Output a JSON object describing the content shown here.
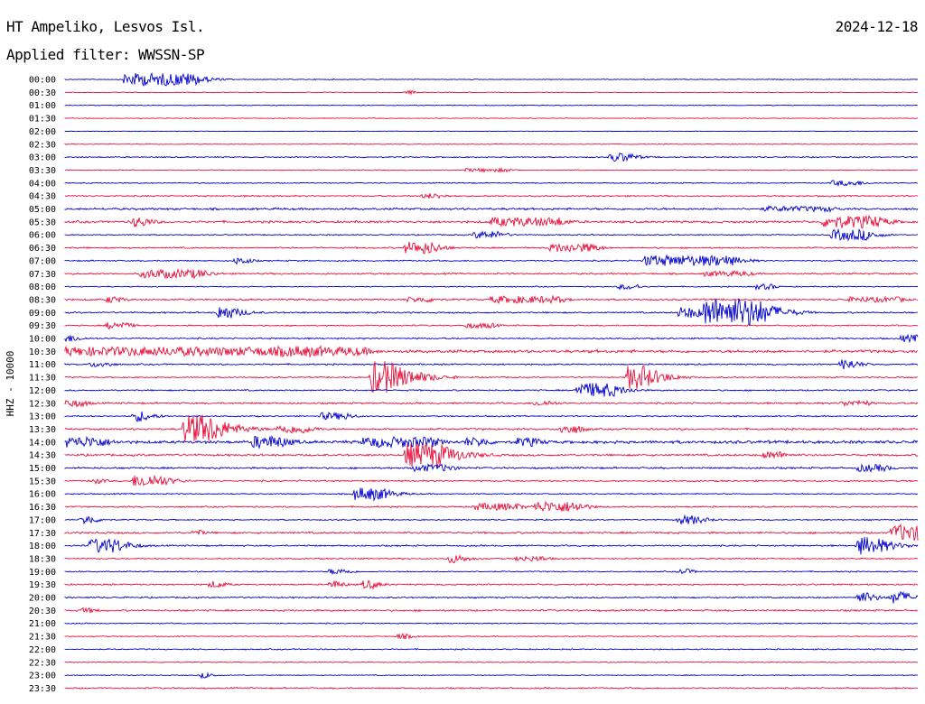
{
  "header": {
    "station": "HT Ampeliko, Lesvos Isl.",
    "date": "2024-12-18",
    "filter": "Applied filter: WWSSN-SP"
  },
  "chart_data": {
    "type": "line",
    "title": "HT Ampeliko, Lesvos Isl.",
    "ylabel": "HHZ - 10000",
    "colors": {
      "odd": "#0000cc",
      "even": "#e8103c"
    },
    "rows": [
      {
        "label": "00:00",
        "color": "#0000cc",
        "noise": 0.6,
        "events": [
          [
            0.07,
            7,
            5,
            0.08
          ]
        ]
      },
      {
        "label": "00:30",
        "color": "#e8103c",
        "noise": 0.5,
        "events": [
          [
            0.4,
            2,
            2,
            0.01
          ]
        ]
      },
      {
        "label": "01:00",
        "color": "#0000cc",
        "noise": 0.5,
        "events": []
      },
      {
        "label": "01:30",
        "color": "#e8103c",
        "noise": 0.5,
        "events": []
      },
      {
        "label": "02:00",
        "color": "#0000cc",
        "noise": 0.4,
        "events": []
      },
      {
        "label": "02:30",
        "color": "#e8103c",
        "noise": 0.5,
        "events": []
      },
      {
        "label": "03:00",
        "color": "#0000cc",
        "noise": 0.8,
        "events": [
          [
            0.64,
            5,
            4,
            0.02
          ]
        ]
      },
      {
        "label": "03:30",
        "color": "#e8103c",
        "noise": 0.6,
        "events": [
          [
            0.47,
            2,
            2,
            0.05
          ]
        ]
      },
      {
        "label": "04:00",
        "color": "#0000cc",
        "noise": 0.7,
        "events": [
          [
            0.9,
            3,
            3,
            0.03
          ]
        ]
      },
      {
        "label": "04:30",
        "color": "#e8103c",
        "noise": 1.0,
        "events": [
          [
            0.42,
            3,
            3,
            0.02
          ]
        ]
      },
      {
        "label": "05:00",
        "color": "#0000cc",
        "noise": 1.4,
        "events": [
          [
            0.82,
            3,
            3,
            0.08
          ]
        ]
      },
      {
        "label": "05:30",
        "color": "#e8103c",
        "noise": 1.5,
        "events": [
          [
            0.08,
            6,
            4,
            0.01
          ],
          [
            0.5,
            5,
            4,
            0.08
          ],
          [
            0.89,
            7,
            5,
            0.06
          ]
        ]
      },
      {
        "label": "06:00",
        "color": "#0000cc",
        "noise": 0.8,
        "events": [
          [
            0.48,
            4,
            3,
            0.03
          ],
          [
            0.9,
            6,
            4,
            0.04
          ]
        ]
      },
      {
        "label": "06:30",
        "color": "#e8103c",
        "noise": 1.0,
        "events": [
          [
            0.4,
            7,
            4,
            0.03
          ],
          [
            0.57,
            5,
            3,
            0.05
          ]
        ]
      },
      {
        "label": "07:00",
        "color": "#0000cc",
        "noise": 0.9,
        "events": [
          [
            0.2,
            4,
            3,
            0.01
          ],
          [
            0.68,
            6,
            5,
            0.1
          ]
        ]
      },
      {
        "label": "07:30",
        "color": "#e8103c",
        "noise": 1.1,
        "events": [
          [
            0.09,
            5,
            4,
            0.07
          ],
          [
            0.75,
            3,
            3,
            0.05
          ]
        ]
      },
      {
        "label": "08:00",
        "color": "#0000cc",
        "noise": 0.7,
        "events": [
          [
            0.65,
            3,
            2,
            0.02
          ],
          [
            0.81,
            3,
            2,
            0.02
          ]
        ]
      },
      {
        "label": "08:30",
        "color": "#e8103c",
        "noise": 1.2,
        "events": [
          [
            0.05,
            4,
            3,
            0.01
          ],
          [
            0.4,
            3,
            3,
            0.03
          ],
          [
            0.5,
            4,
            3,
            0.08
          ],
          [
            0.92,
            3,
            3,
            0.06
          ]
        ]
      },
      {
        "label": "09:00",
        "color": "#0000cc",
        "noise": 1.0,
        "events": [
          [
            0.18,
            8,
            5,
            0.01
          ],
          [
            0.72,
            6,
            4,
            0.02
          ],
          [
            0.75,
            16,
            7,
            0.06
          ]
        ]
      },
      {
        "label": "09:30",
        "color": "#e8103c",
        "noise": 0.9,
        "events": [
          [
            0.05,
            4,
            3,
            0.02
          ],
          [
            0.47,
            3,
            3,
            0.03
          ]
        ]
      },
      {
        "label": "10:00",
        "color": "#0000cc",
        "noise": 1.0,
        "events": [
          [
            0.0,
            4,
            3,
            0.01
          ],
          [
            0.98,
            4,
            3,
            0.02
          ]
        ]
      },
      {
        "label": "10:30",
        "color": "#e8103c",
        "noise": 2.0,
        "events": [
          [
            0.0,
            5,
            4,
            0.35
          ],
          [
            0.25,
            6,
            5,
            0.05
          ]
        ]
      },
      {
        "label": "11:00",
        "color": "#0000cc",
        "noise": 1.0,
        "events": [
          [
            0.03,
            3,
            3,
            0.02
          ],
          [
            0.91,
            6,
            4,
            0.01
          ]
        ]
      },
      {
        "label": "11:30",
        "color": "#e8103c",
        "noise": 0.9,
        "events": [
          [
            0.36,
            18,
            8,
            0.02
          ],
          [
            0.66,
            13,
            6,
            0.02
          ]
        ]
      },
      {
        "label": "12:00",
        "color": "#0000cc",
        "noise": 1.0,
        "events": [
          [
            0.6,
            8,
            5,
            0.04
          ]
        ]
      },
      {
        "label": "12:30",
        "color": "#e8103c",
        "noise": 1.2,
        "events": [
          [
            0.0,
            4,
            3,
            0.02
          ],
          [
            0.55,
            3,
            3,
            0.02
          ],
          [
            0.91,
            3,
            3,
            0.03
          ]
        ]
      },
      {
        "label": "13:00",
        "color": "#0000cc",
        "noise": 0.9,
        "events": [
          [
            0.08,
            6,
            4,
            0.01
          ],
          [
            0.3,
            4,
            3,
            0.03
          ]
        ]
      },
      {
        "label": "13:30",
        "color": "#e8103c",
        "noise": 1.3,
        "events": [
          [
            0.14,
            16,
            7,
            0.03
          ],
          [
            0.25,
            5,
            4,
            0.03
          ],
          [
            0.58,
            5,
            3,
            0.02
          ]
        ]
      },
      {
        "label": "14:00",
        "color": "#0000cc",
        "noise": 2.0,
        "events": [
          [
            0.0,
            6,
            5,
            0.04
          ],
          [
            0.22,
            7,
            5,
            0.03
          ],
          [
            0.35,
            6,
            4,
            0.08
          ],
          [
            0.47,
            5,
            4,
            0.02
          ],
          [
            0.53,
            5,
            4,
            0.02
          ]
        ]
      },
      {
        "label": "14:30",
        "color": "#e8103c",
        "noise": 1.4,
        "events": [
          [
            0.4,
            13,
            7,
            0.04
          ],
          [
            0.82,
            4,
            3,
            0.02
          ]
        ]
      },
      {
        "label": "15:00",
        "color": "#0000cc",
        "noise": 1.2,
        "events": [
          [
            0.41,
            4,
            3,
            0.04
          ],
          [
            0.93,
            4,
            3,
            0.03
          ]
        ]
      },
      {
        "label": "15:30",
        "color": "#e8103c",
        "noise": 1.1,
        "events": [
          [
            0.08,
            7,
            5,
            0.03
          ],
          [
            0.03,
            3,
            3,
            0.01
          ]
        ]
      },
      {
        "label": "16:00",
        "color": "#0000cc",
        "noise": 0.8,
        "events": [
          [
            0.34,
            7,
            5,
            0.03
          ]
        ]
      },
      {
        "label": "16:30",
        "color": "#e8103c",
        "noise": 1.0,
        "events": [
          [
            0.48,
            4,
            3,
            0.05
          ],
          [
            0.55,
            6,
            4,
            0.05
          ]
        ]
      },
      {
        "label": "17:00",
        "color": "#0000cc",
        "noise": 0.9,
        "events": [
          [
            0.02,
            5,
            3,
            0.01
          ],
          [
            0.72,
            5,
            4,
            0.02
          ]
        ]
      },
      {
        "label": "17:30",
        "color": "#e8103c",
        "noise": 1.3,
        "events": [
          [
            0.15,
            3,
            2,
            0.01
          ],
          [
            0.97,
            9,
            6,
            0.03
          ]
        ]
      },
      {
        "label": "18:00",
        "color": "#0000cc",
        "noise": 1.0,
        "events": [
          [
            0.03,
            8,
            5,
            0.03
          ],
          [
            0.93,
            10,
            6,
            0.02
          ]
        ]
      },
      {
        "label": "18:30",
        "color": "#e8103c",
        "noise": 0.9,
        "events": [
          [
            0.45,
            5,
            4,
            0.01
          ],
          [
            0.53,
            3,
            3,
            0.03
          ]
        ]
      },
      {
        "label": "19:00",
        "color": "#0000cc",
        "noise": 0.8,
        "events": [
          [
            0.31,
            3,
            3,
            0.02
          ],
          [
            0.72,
            3,
            3,
            0.01
          ]
        ]
      },
      {
        "label": "19:30",
        "color": "#e8103c",
        "noise": 1.0,
        "events": [
          [
            0.17,
            4,
            3,
            0.01
          ],
          [
            0.31,
            4,
            3,
            0.01
          ],
          [
            0.35,
            5,
            3,
            0.01
          ]
        ]
      },
      {
        "label": "20:00",
        "color": "#0000cc",
        "noise": 1.0,
        "events": [
          [
            0.93,
            6,
            4,
            0.01
          ],
          [
            0.97,
            7,
            5,
            0.01
          ]
        ]
      },
      {
        "label": "20:30",
        "color": "#e8103c",
        "noise": 1.2,
        "events": [
          [
            0.02,
            3,
            3,
            0.01
          ]
        ]
      },
      {
        "label": "21:00",
        "color": "#0000cc",
        "noise": 0.7,
        "events": []
      },
      {
        "label": "21:30",
        "color": "#e8103c",
        "noise": 0.7,
        "events": [
          [
            0.39,
            3,
            3,
            0.01
          ]
        ]
      },
      {
        "label": "22:00",
        "color": "#0000cc",
        "noise": 0.8,
        "events": []
      },
      {
        "label": "22:30",
        "color": "#e8103c",
        "noise": 0.6,
        "events": []
      },
      {
        "label": "23:00",
        "color": "#0000cc",
        "noise": 0.6,
        "events": [
          [
            0.16,
            3,
            2,
            0.01
          ]
        ]
      },
      {
        "label": "23:30",
        "color": "#e8103c",
        "noise": 1.0,
        "events": []
      }
    ]
  }
}
